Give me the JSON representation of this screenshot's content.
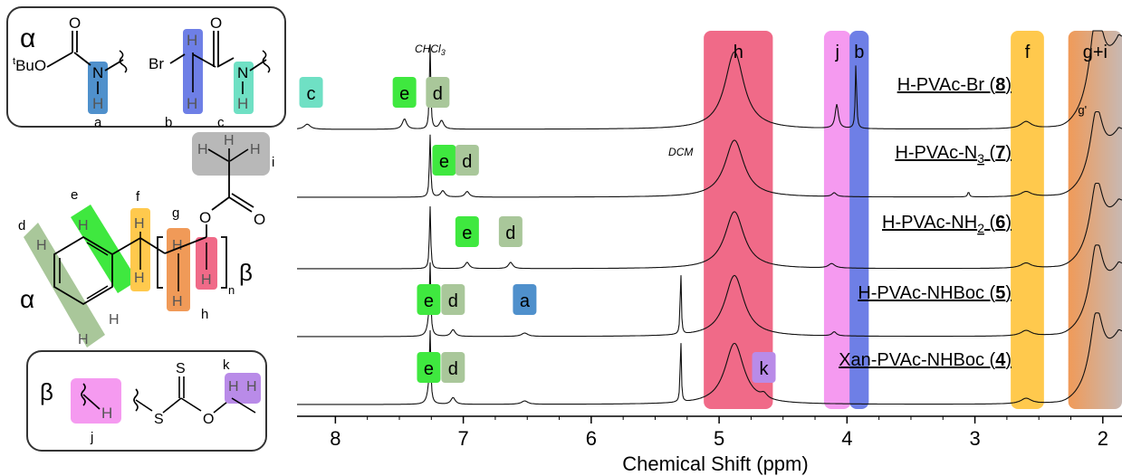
{
  "colors": {
    "a": "#4f90cc",
    "b": "#6e7fe6",
    "c": "#6fe0c4",
    "d": "#a9c79a",
    "e": "#3fe83f",
    "f": "#ffc94d",
    "g": "#f09a58",
    "h": "#f06a88",
    "i": "#b8b8b8",
    "j": "#f59af0",
    "k": "#b98be8",
    "gi_end": "#c8b8b2",
    "frame": "#333333",
    "spectrum": "#111111"
  },
  "structures": {
    "alpha_panel": {
      "greek": "α",
      "tbuo": "tBuO",
      "br": "Br",
      "o": "O",
      "n": "N",
      "h": "H",
      "labels": {
        "a": "a",
        "b": "b",
        "c": "c"
      }
    },
    "polymer": {
      "labels": {
        "d": "d",
        "e": "e",
        "f": "f",
        "g": "g",
        "h": "h",
        "i": "i"
      },
      "alpha": "α",
      "beta": "β",
      "subscript_n": "n",
      "o": "O",
      "h_atom": "H"
    },
    "beta_panel": {
      "greek": "β",
      "s": "S",
      "o": "O",
      "h": "H",
      "labels": {
        "j": "j",
        "k": "k"
      }
    }
  },
  "chart_data": {
    "type": "line",
    "title": "",
    "xlabel": "Chemical Shift (ppm)",
    "ylabel": "",
    "xlim": [
      8.3,
      1.85
    ],
    "x_reversed": true,
    "xticks": [
      8,
      7,
      6,
      5,
      4,
      3,
      2
    ],
    "series": [
      {
        "name": "H-PVAc-Br (8)",
        "label_main": "H-PVAc-Br (",
        "label_num": "8",
        "label_end": ")",
        "peaks": [
          {
            "ppm": 8.22,
            "height": 0.06,
            "width": 0.03
          },
          {
            "ppm": 7.46,
            "height": 0.12,
            "width": 0.02
          },
          {
            "ppm": 7.26,
            "height": 1.0,
            "width": 0.006
          },
          {
            "ppm": 7.17,
            "height": 0.1,
            "width": 0.02
          },
          {
            "ppm": 4.88,
            "height": 0.9,
            "width": 0.09
          },
          {
            "ppm": 4.08,
            "height": 0.28,
            "width": 0.015
          },
          {
            "ppm": 3.93,
            "height": 0.78,
            "width": 0.006
          },
          {
            "ppm": 2.6,
            "height": 0.08,
            "width": 0.05
          },
          {
            "ppm": 2.05,
            "height": 1.0,
            "width": 0.06
          }
        ]
      },
      {
        "name": "H-PVAc-N3 (7)",
        "label_main": "H-PVAc-N",
        "label_sub": "3",
        "label_num": "7",
        "label_end": ")",
        "peaks": [
          {
            "ppm": 7.26,
            "height": 1.0,
            "width": 0.006
          },
          {
            "ppm": 7.16,
            "height": 0.1,
            "width": 0.02
          },
          {
            "ppm": 6.97,
            "height": 0.09,
            "width": 0.02
          },
          {
            "ppm": 4.88,
            "height": 0.9,
            "width": 0.09
          },
          {
            "ppm": 4.1,
            "height": 0.06,
            "width": 0.02
          },
          {
            "ppm": 3.05,
            "height": 0.08,
            "width": 0.008
          },
          {
            "ppm": 2.6,
            "height": 0.08,
            "width": 0.05
          },
          {
            "ppm": 2.05,
            "height": 1.0,
            "width": 0.06
          }
        ]
      },
      {
        "name": "H-PVAc-NH2 (6)",
        "label_main": "H-PVAc-NH",
        "label_sub": "2",
        "label_num": "6",
        "label_end": ")",
        "peaks": [
          {
            "ppm": 7.26,
            "height": 1.0,
            "width": 0.006
          },
          {
            "ppm": 6.97,
            "height": 0.1,
            "width": 0.02
          },
          {
            "ppm": 6.63,
            "height": 0.1,
            "width": 0.02
          },
          {
            "ppm": 4.88,
            "height": 0.9,
            "width": 0.09
          },
          {
            "ppm": 4.12,
            "height": 0.07,
            "width": 0.03
          },
          {
            "ppm": 2.6,
            "height": 0.08,
            "width": 0.05
          },
          {
            "ppm": 2.05,
            "height": 1.0,
            "width": 0.06
          }
        ]
      },
      {
        "name": "H-PVAc-NHBoc (5)",
        "label_main": "H-PVAc-NHBoc (",
        "label_num": "5",
        "label_end": ")",
        "peaks": [
          {
            "ppm": 7.26,
            "height": 1.0,
            "width": 0.006
          },
          {
            "ppm": 7.27,
            "height": 0.14,
            "width": 0.02
          },
          {
            "ppm": 7.08,
            "height": 0.1,
            "width": 0.02
          },
          {
            "ppm": 6.52,
            "height": 0.05,
            "width": 0.03
          },
          {
            "ppm": 5.3,
            "height": 1.0,
            "width": 0.005
          },
          {
            "ppm": 4.88,
            "height": 0.9,
            "width": 0.09
          },
          {
            "ppm": 4.1,
            "height": 0.06,
            "width": 0.02
          },
          {
            "ppm": 2.6,
            "height": 0.08,
            "width": 0.05
          },
          {
            "ppm": 2.05,
            "height": 1.0,
            "width": 0.06
          }
        ]
      },
      {
        "name": "Xan-PVAc-NHBoc (4)",
        "label_main": "Xan-PVAc-NHBoc (",
        "label_num": "4",
        "label_end": ")",
        "peaks": [
          {
            "ppm": 7.26,
            "height": 1.0,
            "width": 0.006
          },
          {
            "ppm": 7.27,
            "height": 0.14,
            "width": 0.02
          },
          {
            "ppm": 7.08,
            "height": 0.1,
            "width": 0.02
          },
          {
            "ppm": 6.52,
            "height": 0.05,
            "width": 0.03
          },
          {
            "ppm": 5.3,
            "height": 1.0,
            "width": 0.005
          },
          {
            "ppm": 4.88,
            "height": 0.9,
            "width": 0.09
          },
          {
            "ppm": 4.65,
            "height": 0.07,
            "width": 0.03
          },
          {
            "ppm": 2.6,
            "height": 0.08,
            "width": 0.05
          },
          {
            "ppm": 2.05,
            "height": 1.0,
            "width": 0.06
          }
        ]
      }
    ],
    "solvent_labels": [
      {
        "text": "CHCl3",
        "main": "CHCl",
        "sub": "3",
        "ppm": 7.26
      },
      {
        "text": "DCM",
        "ppm": 5.3
      }
    ],
    "bands": [
      {
        "label": "h",
        "ppm_left": 5.12,
        "ppm_right": 4.58,
        "color_key": "h"
      },
      {
        "label": "j",
        "ppm_left": 4.18,
        "ppm_right": 3.97,
        "color_key": "j"
      },
      {
        "label": "b",
        "ppm_left": 3.98,
        "ppm_right": 3.83,
        "color_key": "b"
      },
      {
        "label": "f",
        "ppm_left": 2.72,
        "ppm_right": 2.46,
        "color_key": "f"
      },
      {
        "label": "g+i",
        "ppm_left": 2.27,
        "ppm_right": 1.85,
        "color_key": "g"
      }
    ],
    "peak_labels": [
      {
        "label": "c",
        "ppm": 8.19,
        "row": 0,
        "color_key": "c"
      },
      {
        "label": "e",
        "ppm": 7.46,
        "row": 0,
        "color_key": "e"
      },
      {
        "label": "d",
        "ppm": 7.2,
        "row": 0,
        "color_key": "d"
      },
      {
        "label": "e",
        "ppm": 7.15,
        "row": 1,
        "color_key": "e"
      },
      {
        "label": "d",
        "ppm": 6.97,
        "row": 1,
        "color_key": "d"
      },
      {
        "label": "e",
        "ppm": 6.97,
        "row": 2,
        "color_key": "e"
      },
      {
        "label": "d",
        "ppm": 6.63,
        "row": 2,
        "color_key": "d"
      },
      {
        "label": "e",
        "ppm": 7.27,
        "row": 3,
        "color_key": "e"
      },
      {
        "label": "d",
        "ppm": 7.08,
        "row": 3,
        "color_key": "d"
      },
      {
        "label": "a",
        "ppm": 6.52,
        "row": 3,
        "color_key": "a"
      },
      {
        "label": "e",
        "ppm": 7.27,
        "row": 4,
        "color_key": "e"
      },
      {
        "label": "d",
        "ppm": 7.08,
        "row": 4,
        "color_key": "d"
      },
      {
        "label": "k",
        "ppm": 4.65,
        "row": 4,
        "color_key": "k"
      }
    ],
    "small_annotations": [
      {
        "label": "g'",
        "ppm": 2.16
      }
    ],
    "grid": false,
    "legend": "none"
  }
}
